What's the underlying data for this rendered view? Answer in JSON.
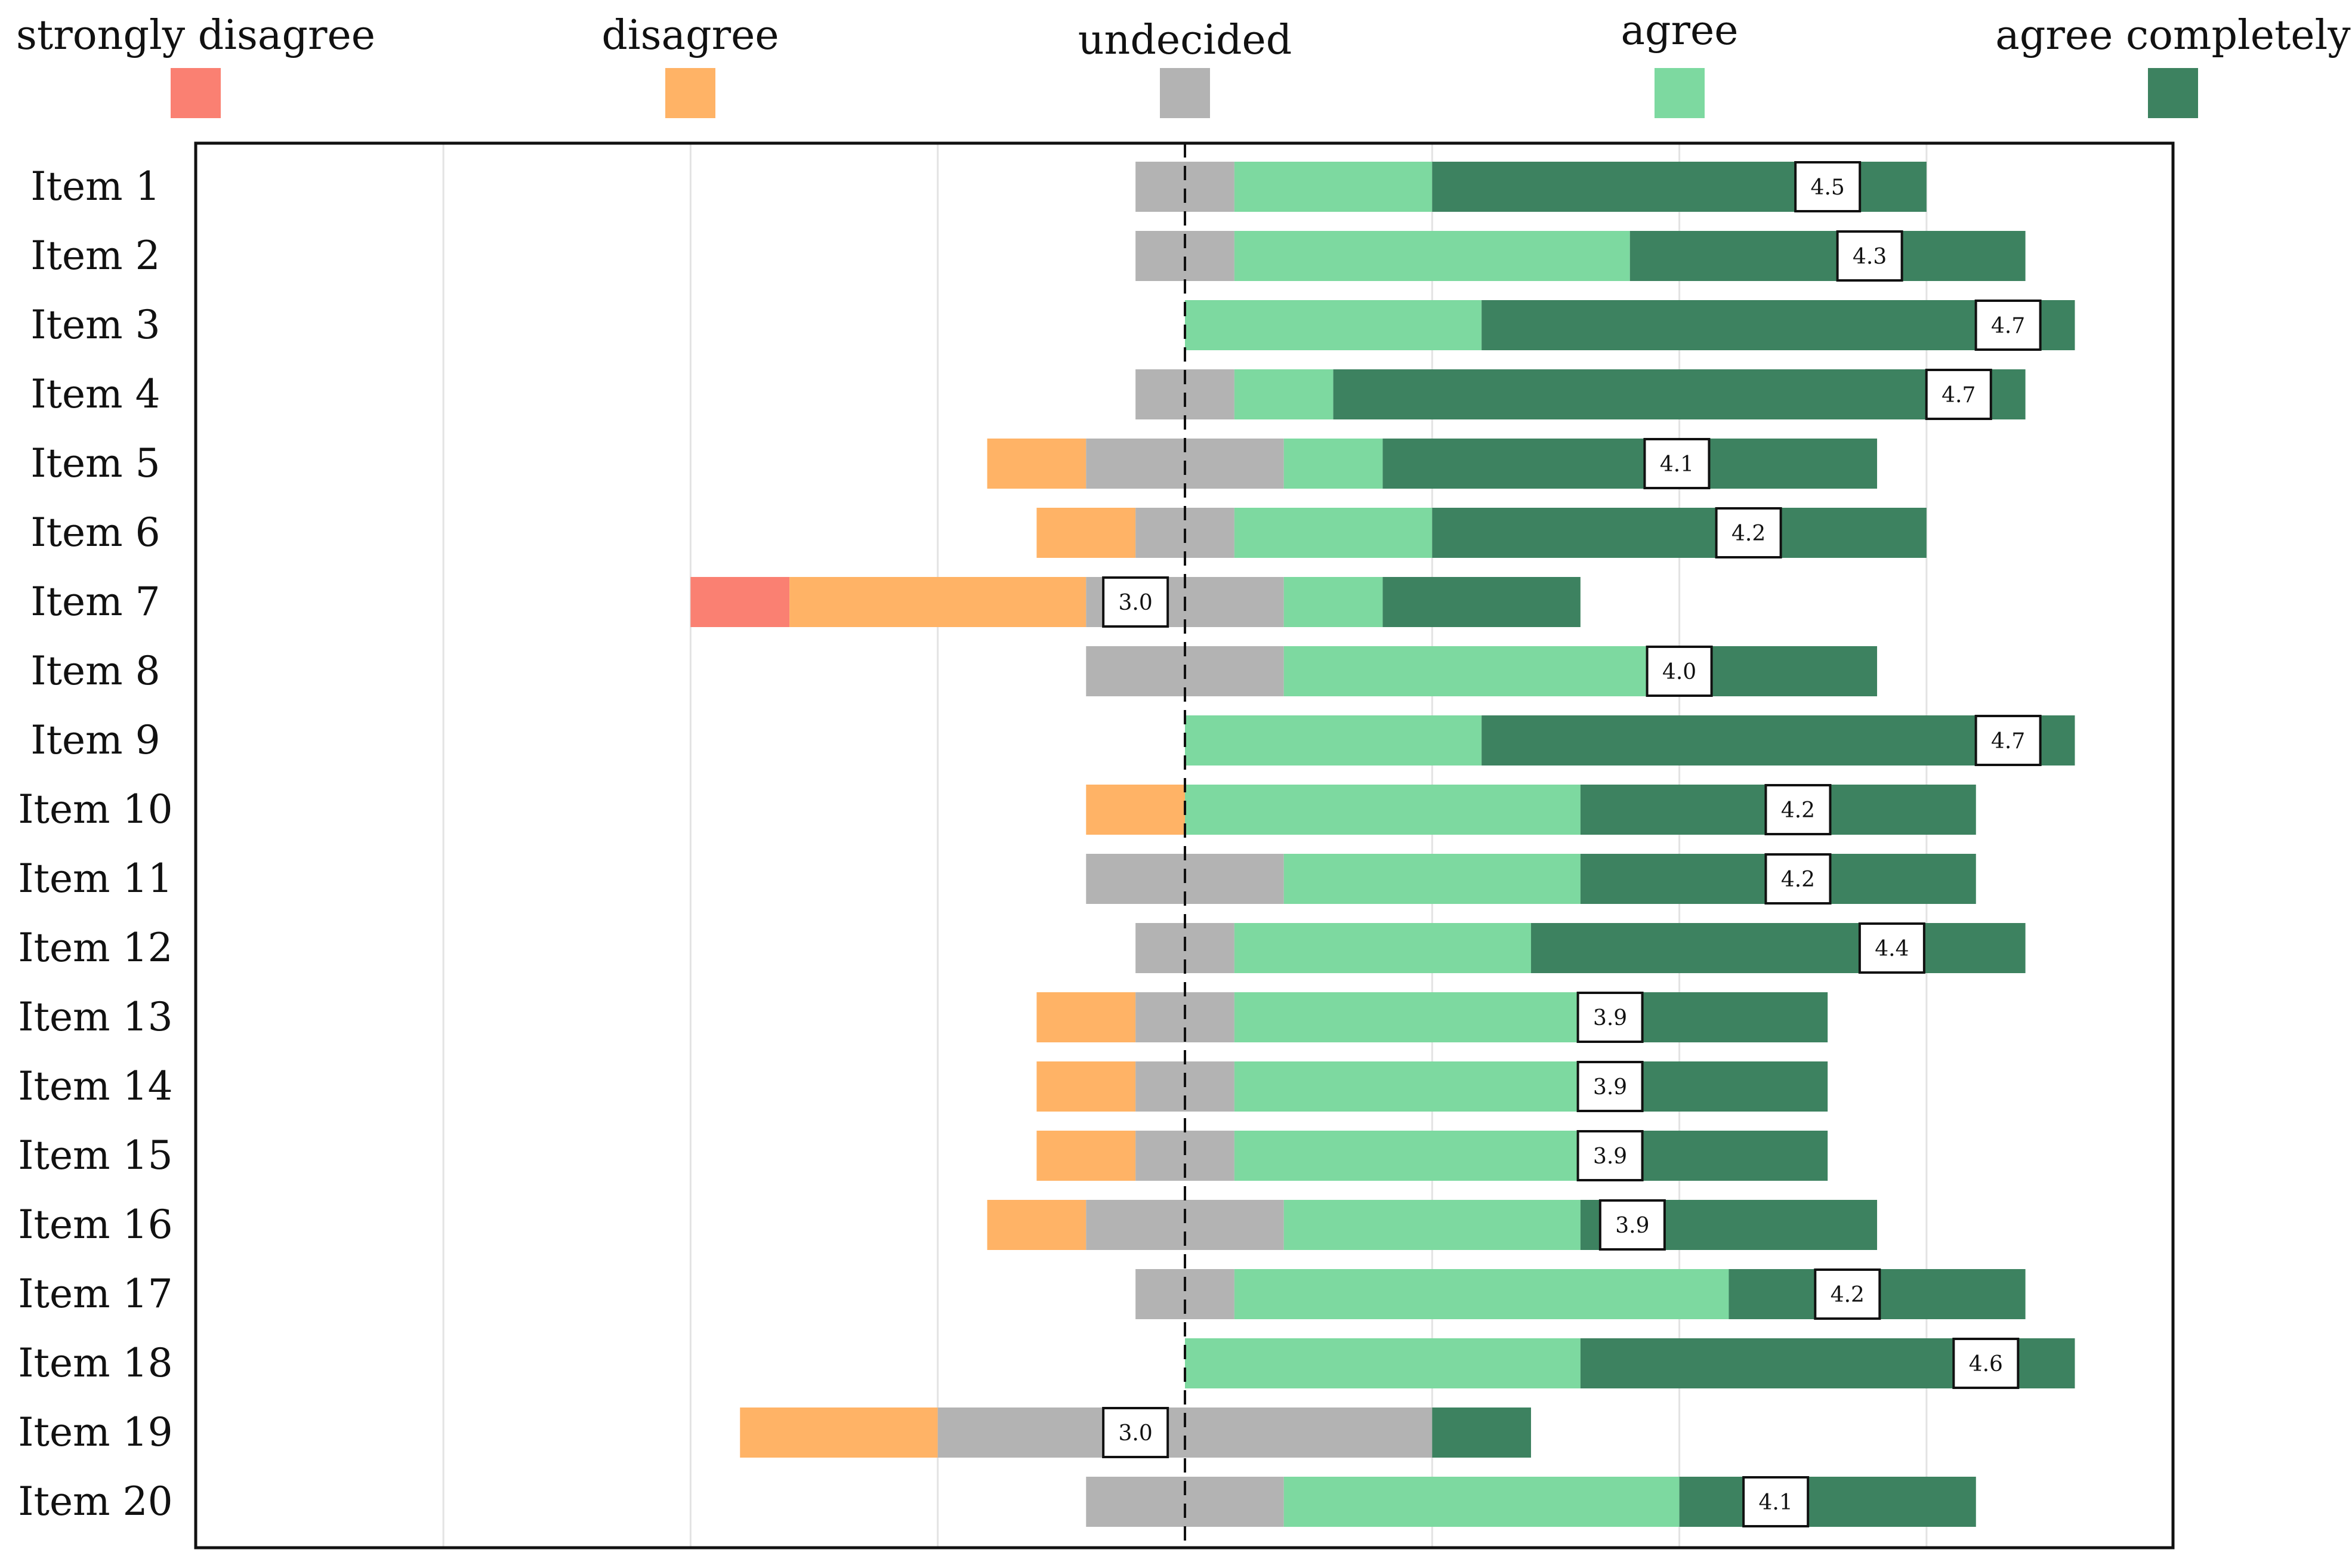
{
  "chart_data": {
    "type": "bar",
    "subtype": "diverging-stacked-likert",
    "title": "",
    "xlabel": "",
    "ylabel": "",
    "legend_position": "top",
    "grid": true,
    "center_line": "dashed",
    "scale_units": "respondents",
    "categories_legend": [
      {
        "name": "strongly disagree",
        "color": "#fa8072"
      },
      {
        "name": "disagree",
        "color": "#ffb366"
      },
      {
        "name": "undecided",
        "color": "#b3b3b3"
      },
      {
        "name": "agree",
        "color": "#7dd9a0"
      },
      {
        "name": "agree completely",
        "color": "#3d8260"
      }
    ],
    "items": [
      {
        "label": "Item 1",
        "counts": [
          0,
          0,
          2,
          4,
          10
        ],
        "mean": "4.5"
      },
      {
        "label": "Item 2",
        "counts": [
          0,
          0,
          2,
          8,
          8
        ],
        "mean": "4.3"
      },
      {
        "label": "Item 3",
        "counts": [
          0,
          0,
          0,
          6,
          12
        ],
        "mean": "4.7"
      },
      {
        "label": "Item 4",
        "counts": [
          0,
          0,
          2,
          2,
          14
        ],
        "mean": "4.7"
      },
      {
        "label": "Item 5",
        "counts": [
          0,
          2,
          4,
          2,
          10
        ],
        "mean": "4.1"
      },
      {
        "label": "Item 6",
        "counts": [
          0,
          2,
          2,
          4,
          10
        ],
        "mean": "4.2"
      },
      {
        "label": "Item 7",
        "counts": [
          2,
          6,
          4,
          2,
          4
        ],
        "mean": "3.0"
      },
      {
        "label": "Item 8",
        "counts": [
          0,
          0,
          4,
          8,
          4
        ],
        "mean": "4.0"
      },
      {
        "label": "Item 9",
        "counts": [
          0,
          0,
          0,
          6,
          12
        ],
        "mean": "4.7"
      },
      {
        "label": "Item 10",
        "counts": [
          0,
          2,
          0,
          8,
          8
        ],
        "mean": "4.2"
      },
      {
        "label": "Item 11",
        "counts": [
          0,
          0,
          4,
          6,
          8
        ],
        "mean": "4.2"
      },
      {
        "label": "Item 12",
        "counts": [
          0,
          0,
          2,
          6,
          10
        ],
        "mean": "4.4"
      },
      {
        "label": "Item 13",
        "counts": [
          0,
          2,
          2,
          8,
          4
        ],
        "mean": "3.9"
      },
      {
        "label": "Item 14",
        "counts": [
          0,
          2,
          2,
          8,
          4
        ],
        "mean": "3.9"
      },
      {
        "label": "Item 15",
        "counts": [
          0,
          2,
          2,
          8,
          4
        ],
        "mean": "3.9"
      },
      {
        "label": "Item 16",
        "counts": [
          0,
          2,
          4,
          6,
          6
        ],
        "mean": "3.9"
      },
      {
        "label": "Item 17",
        "counts": [
          0,
          0,
          2,
          10,
          6
        ],
        "mean": "4.2"
      },
      {
        "label": "Item 18",
        "counts": [
          0,
          0,
          0,
          8,
          10
        ],
        "mean": "4.6"
      },
      {
        "label": "Item 19",
        "counts": [
          0,
          4,
          10,
          0,
          2
        ],
        "mean": "3.0"
      },
      {
        "label": "Item 20",
        "counts": [
          0,
          0,
          4,
          8,
          6
        ],
        "mean": "4.1"
      }
    ],
    "xlim": [
      -20,
      20
    ],
    "x_grid_lines": [
      -15,
      -10,
      -5,
      0,
      5,
      10,
      15
    ]
  }
}
